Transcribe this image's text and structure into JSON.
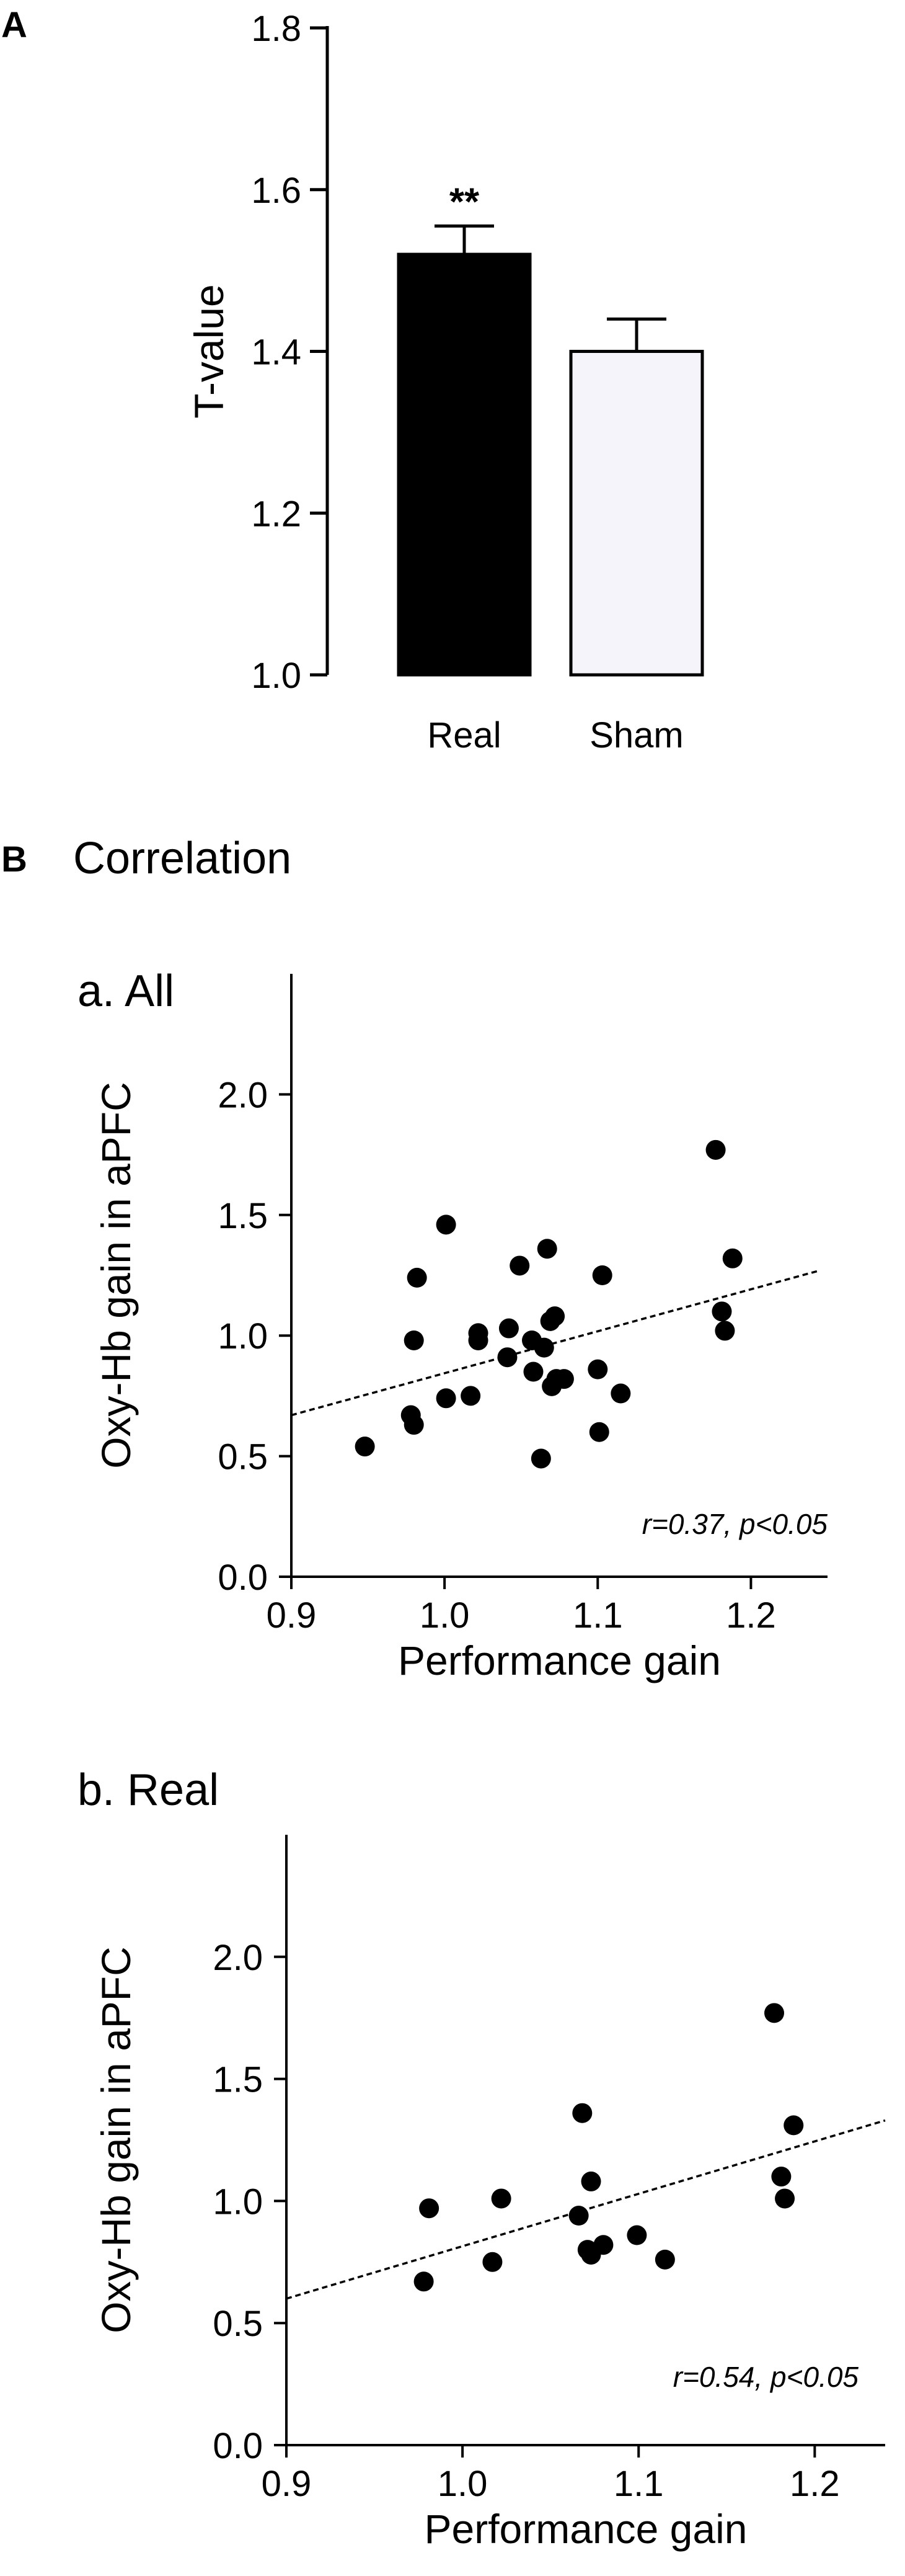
{
  "figure": {
    "panel_a_letter": "A",
    "panel_b_letter": "B",
    "panel_b_title": "Correlation"
  },
  "chart_data": [
    {
      "id": "bar",
      "type": "bar",
      "categories": [
        "Real",
        "Sham"
      ],
      "values": [
        1.52,
        1.4
      ],
      "errors": [
        0.035,
        0.04
      ],
      "bar_colors": [
        "#000000",
        "#f4f4fa"
      ],
      "significance": [
        "**",
        ""
      ],
      "ylabel": "T-value",
      "xlabel": "",
      "ylim": [
        1.0,
        1.8
      ],
      "yticks": [
        1.0,
        1.2,
        1.4,
        1.6,
        1.8
      ],
      "ytick_labels": [
        "1.0",
        "1.2",
        "1.4",
        "1.6",
        "1.8"
      ]
    },
    {
      "id": "scatterAll",
      "type": "scatter",
      "title": "a. All",
      "xlabel": "Performance gain",
      "ylabel": "Oxy-Hb gain  in aPFC",
      "xlim": [
        0.9,
        1.25
      ],
      "ylim": [
        0.0,
        2.5
      ],
      "xticks": [
        0.9,
        1.0,
        1.1,
        1.2
      ],
      "xtick_labels": [
        "0.9",
        "1.0",
        "1.1",
        "1.2"
      ],
      "yticks": [
        0.0,
        0.5,
        1.0,
        1.5,
        2.0
      ],
      "ytick_labels": [
        "0.0",
        "0.5",
        "1.0",
        "1.5",
        "2.0"
      ],
      "points": [
        [
          0.948,
          0.54
        ],
        [
          0.978,
          0.67
        ],
        [
          0.98,
          0.63
        ],
        [
          0.98,
          0.98
        ],
        [
          0.982,
          1.24
        ],
        [
          1.001,
          1.46
        ],
        [
          1.001,
          0.74
        ],
        [
          1.017,
          0.75
        ],
        [
          1.022,
          1.01
        ],
        [
          1.022,
          0.98
        ],
        [
          1.041,
          0.91
        ],
        [
          1.042,
          1.03
        ],
        [
          1.049,
          1.29
        ],
        [
          1.057,
          0.98
        ],
        [
          1.058,
          0.85
        ],
        [
          1.063,
          0.49
        ],
        [
          1.065,
          0.95
        ],
        [
          1.067,
          1.36
        ],
        [
          1.069,
          1.06
        ],
        [
          1.07,
          0.79
        ],
        [
          1.072,
          1.08
        ],
        [
          1.073,
          0.82
        ],
        [
          1.078,
          0.82
        ],
        [
          1.1,
          0.86
        ],
        [
          1.101,
          0.6
        ],
        [
          1.103,
          1.25
        ],
        [
          1.115,
          0.76
        ],
        [
          1.177,
          1.77
        ],
        [
          1.181,
          1.1
        ],
        [
          1.183,
          1.02
        ],
        [
          1.188,
          1.32
        ]
      ],
      "fit_line": [
        [
          0.9,
          0.67
        ],
        [
          1.245,
          1.27
        ]
      ],
      "annotation": "r=0.37, p<0.05"
    },
    {
      "id": "scatterReal",
      "type": "scatter",
      "title": "b. Real",
      "xlabel": "Performance gain",
      "ylabel": "Oxy-Hb gain in aPFC",
      "xlim": [
        0.9,
        1.24
      ],
      "ylim": [
        0.0,
        2.5
      ],
      "xticks": [
        0.9,
        1.0,
        1.1,
        1.2
      ],
      "xtick_labels": [
        "0.9",
        "1.0",
        "1.1",
        "1.2"
      ],
      "yticks": [
        0.0,
        0.5,
        1.0,
        1.5,
        2.0
      ],
      "ytick_labels": [
        "0.0",
        "0.5",
        "1.0",
        "1.5",
        "2.0"
      ],
      "points": [
        [
          0.978,
          0.67
        ],
        [
          0.981,
          0.97
        ],
        [
          1.017,
          0.75
        ],
        [
          1.022,
          1.01
        ],
        [
          1.066,
          0.94
        ],
        [
          1.068,
          1.36
        ],
        [
          1.071,
          0.8
        ],
        [
          1.073,
          1.08
        ],
        [
          1.073,
          0.78
        ],
        [
          1.08,
          0.82
        ],
        [
          1.099,
          0.86
        ],
        [
          1.115,
          0.76
        ],
        [
          1.177,
          1.77
        ],
        [
          1.181,
          1.1
        ],
        [
          1.183,
          1.01
        ],
        [
          1.188,
          1.31
        ]
      ],
      "fit_line": [
        [
          0.9,
          0.6
        ],
        [
          1.24,
          1.33
        ]
      ],
      "annotation": "r=0.54, p<0.05"
    }
  ]
}
